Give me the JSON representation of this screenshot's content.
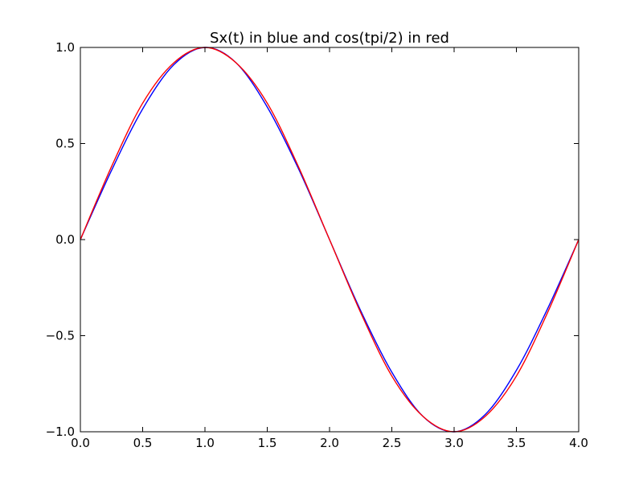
{
  "chart_data": {
    "type": "line",
    "title": "Sx(t) in blue and cos(tpi/2) in red",
    "xlabel": "",
    "ylabel": "",
    "xlim": [
      0.0,
      4.0
    ],
    "ylim": [
      -1.0,
      1.0
    ],
    "x_ticks": [
      0.0,
      0.5,
      1.0,
      1.5,
      2.0,
      2.5,
      3.0,
      3.5,
      4.0
    ],
    "x_tick_labels": [
      "0.0",
      "0.5",
      "1.0",
      "1.5",
      "2.0",
      "2.5",
      "3.0",
      "3.5",
      "4.0"
    ],
    "y_ticks": [
      -1.0,
      -0.5,
      0.0,
      0.5,
      1.0
    ],
    "y_tick_labels": [
      "−1.0",
      "−0.5",
      "0.0",
      "0.5",
      "1.0"
    ],
    "grid": false,
    "legend": "none",
    "series": [
      {
        "color": "#0000ff",
        "x": [
          0.0,
          0.25,
          0.5,
          0.75,
          1.0,
          1.25,
          1.5,
          1.75,
          2.0,
          2.25,
          2.5,
          2.75,
          3.0,
          3.25,
          3.5,
          3.75,
          4.0
        ],
        "y": [
          0.0,
          0.36,
          0.68,
          0.91,
          1.0,
          0.92,
          0.69,
          0.37,
          0.0,
          -0.37,
          -0.69,
          -0.92,
          -1.0,
          -0.91,
          -0.68,
          -0.36,
          0.0
        ]
      },
      {
        "color": "#ff0000",
        "x": [
          0.0,
          0.25,
          0.5,
          0.75,
          1.0,
          1.25,
          1.5,
          1.75,
          2.0,
          2.25,
          2.5,
          2.75,
          3.0,
          3.25,
          3.5,
          3.75,
          4.0
        ],
        "y": [
          0.0,
          0.38,
          0.71,
          0.92,
          1.0,
          0.92,
          0.71,
          0.38,
          0.0,
          -0.38,
          -0.71,
          -0.92,
          -1.0,
          -0.92,
          -0.71,
          -0.38,
          0.0
        ]
      }
    ]
  }
}
